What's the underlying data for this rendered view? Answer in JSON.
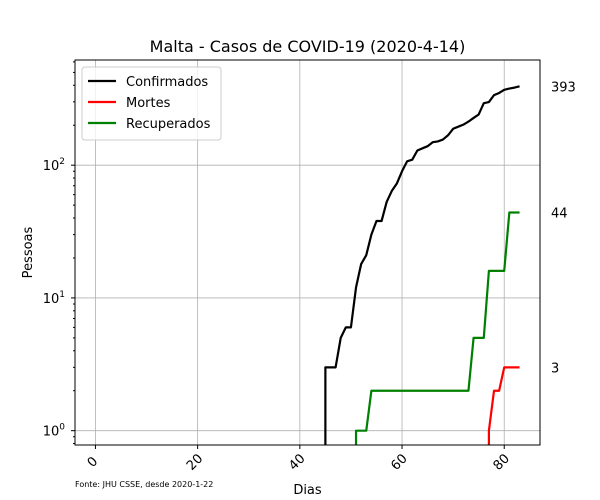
{
  "chart_data": {
    "type": "line",
    "title": "Malta - Casos de COVID-19 (2020-4-14)",
    "xlabel": "Dias",
    "ylabel": "Pessoas",
    "yscale": "log",
    "xlim": [
      -4,
      87
    ],
    "ylim": [
      0.78,
      620
    ],
    "x_ticks": [
      0,
      20,
      40,
      60,
      80
    ],
    "y_ticks": [
      {
        "value": 1,
        "label": "10^0",
        "base": "10",
        "exp": "0"
      },
      {
        "value": 10,
        "label": "10^1",
        "base": "10",
        "exp": "1"
      },
      {
        "value": 100,
        "label": "10^2",
        "base": "10",
        "exp": "2"
      }
    ],
    "grid": true,
    "legend_position": "top-left",
    "series": [
      {
        "name": "Confirmados",
        "color": "#000000",
        "end_label": "393",
        "points": [
          [
            45,
            0.5
          ],
          [
            45,
            3
          ],
          [
            46,
            3
          ],
          [
            47,
            3
          ],
          [
            48,
            5
          ],
          [
            49,
            6
          ],
          [
            50,
            6
          ],
          [
            51,
            12
          ],
          [
            52,
            18
          ],
          [
            53,
            21
          ],
          [
            54,
            30
          ],
          [
            55,
            38
          ],
          [
            56,
            38
          ],
          [
            57,
            53
          ],
          [
            58,
            64
          ],
          [
            59,
            73
          ],
          [
            60,
            90
          ],
          [
            61,
            107
          ],
          [
            62,
            110
          ],
          [
            63,
            129
          ],
          [
            64,
            134
          ],
          [
            65,
            139
          ],
          [
            66,
            149
          ],
          [
            67,
            151
          ],
          [
            68,
            156
          ],
          [
            69,
            168
          ],
          [
            70,
            188
          ],
          [
            71,
            195
          ],
          [
            72,
            202
          ],
          [
            73,
            213
          ],
          [
            74,
            227
          ],
          [
            75,
            241
          ],
          [
            76,
            293
          ],
          [
            77,
            299
          ],
          [
            78,
            337
          ],
          [
            79,
            350
          ],
          [
            80,
            370
          ],
          [
            81,
            378
          ],
          [
            82,
            384
          ],
          [
            83,
            393
          ]
        ]
      },
      {
        "name": "Mortes",
        "color": "#ff0000",
        "end_label": "3",
        "points": [
          [
            77,
            0.5
          ],
          [
            77,
            1
          ],
          [
            78,
            2
          ],
          [
            79,
            2
          ],
          [
            80,
            3
          ],
          [
            81,
            3
          ],
          [
            82,
            3
          ],
          [
            83,
            3
          ]
        ]
      },
      {
        "name": "Recuperados",
        "color": "#008000",
        "end_label": "44",
        "points": [
          [
            51,
            0.5
          ],
          [
            51,
            1
          ],
          [
            52,
            1
          ],
          [
            53,
            1
          ],
          [
            54,
            2
          ],
          [
            55,
            2
          ],
          [
            56,
            2
          ],
          [
            57,
            2
          ],
          [
            58,
            2
          ],
          [
            59,
            2
          ],
          [
            60,
            2
          ],
          [
            61,
            2
          ],
          [
            62,
            2
          ],
          [
            63,
            2
          ],
          [
            64,
            2
          ],
          [
            65,
            2
          ],
          [
            66,
            2
          ],
          [
            67,
            2
          ],
          [
            68,
            2
          ],
          [
            69,
            2
          ],
          [
            70,
            2
          ],
          [
            71,
            2
          ],
          [
            72,
            2
          ],
          [
            73,
            2
          ],
          [
            74,
            5
          ],
          [
            75,
            5
          ],
          [
            76,
            5
          ],
          [
            77,
            16
          ],
          [
            78,
            16
          ],
          [
            79,
            16
          ],
          [
            80,
            16
          ],
          [
            81,
            44
          ],
          [
            82,
            44
          ],
          [
            83,
            44
          ]
        ]
      }
    ],
    "source_note": "Fonte: JHU CSSE, desde 2020-1-22"
  }
}
